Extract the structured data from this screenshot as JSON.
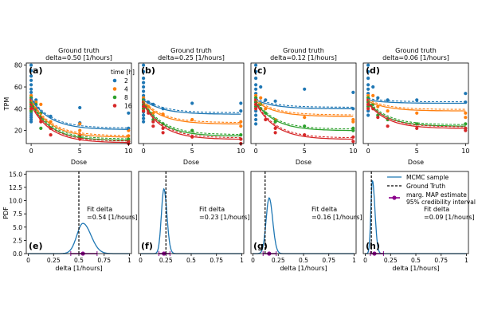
{
  "chart_data": {
    "type": "scatter",
    "colors": {
      "2": "#1f77b4",
      "4": "#ff7f0e",
      "8": "#2ca02c",
      "16": "#d62728",
      "map": "#8b008b",
      "mcmc": "#1f77b4",
      "truth": "#000000"
    },
    "legend_top": {
      "title": "time [h]",
      "entries": [
        "2",
        "4",
        "8",
        "16"
      ]
    },
    "legend_bottom": {
      "entries": [
        "MCMC sample",
        "Ground Truth",
        "marg. MAP estimate",
        "95% credibility interval"
      ]
    },
    "top_panels": [
      {
        "label": "(a)",
        "title1": "Ground truth",
        "title2": "delta=0.50 [1/hours]",
        "xlabel": "Dose",
        "ylabel": "TPM",
        "xticks": [
          "0",
          "5",
          "10"
        ],
        "yticks": [
          "20",
          "40",
          "60",
          "80"
        ],
        "xlim": [
          -0.5,
          10.3
        ],
        "ylim": [
          8,
          82
        ],
        "delta": 0.5,
        "scatter": {
          "2": [
            [
              0,
              80
            ],
            [
              0,
              75
            ],
            [
              0,
              70
            ],
            [
              0,
              66
            ],
            [
              0,
              62
            ],
            [
              0,
              58
            ],
            [
              0,
              55
            ],
            [
              0,
              52
            ],
            [
              0,
              50
            ],
            [
              0,
              48
            ],
            [
              0,
              46
            ],
            [
              0,
              44
            ],
            [
              0,
              42
            ],
            [
              0,
              40
            ],
            [
              0,
              38
            ],
            [
              0,
              36
            ],
            [
              0,
              34
            ],
            [
              0,
              32
            ],
            [
              0,
              30
            ],
            [
              0,
              28
            ],
            [
              0.5,
              48
            ],
            [
              1,
              36
            ],
            [
              2,
              33
            ],
            [
              5,
              41
            ],
            [
              5,
              27
            ],
            [
              10,
              36
            ],
            [
              10,
              22
            ]
          ],
          "4": [
            [
              0,
              52
            ],
            [
              0,
              48
            ],
            [
              0,
              45
            ],
            [
              0,
              42
            ],
            [
              0,
              40
            ],
            [
              0,
              38
            ],
            [
              0.5,
              46
            ],
            [
              1,
              44
            ],
            [
              1,
              30
            ],
            [
              2,
              28
            ],
            [
              2,
              22
            ],
            [
              5,
              26
            ],
            [
              5,
              20
            ],
            [
              10,
              20
            ],
            [
              10,
              15
            ]
          ],
          "8": [
            [
              0,
              50
            ],
            [
              0,
              46
            ],
            [
              0,
              42
            ],
            [
              0,
              38
            ],
            [
              0.5,
              44
            ],
            [
              1,
              36
            ],
            [
              1,
              22
            ],
            [
              2,
              22
            ],
            [
              5,
              14
            ],
            [
              10,
              12
            ],
            [
              10,
              10
            ]
          ],
          "16": [
            [
              0,
              48
            ],
            [
              0,
              44
            ],
            [
              0,
              40
            ],
            [
              0.5,
              40
            ],
            [
              1,
              32
            ],
            [
              1,
              28
            ],
            [
              2,
              22
            ],
            [
              2,
              16
            ],
            [
              5,
              16
            ],
            [
              5,
              12
            ],
            [
              10,
              10
            ],
            [
              10,
              8
            ]
          ]
        },
        "fits": {
          "2": [
            49,
            21
          ],
          "4": [
            47,
            14
          ],
          "8": [
            45,
            11
          ],
          "16": [
            43,
            9
          ]
        }
      },
      {
        "label": "(b)",
        "title1": "Ground truth",
        "title2": "delta=0.25 [1/hours]",
        "xlabel": "Dose",
        "ylabel": "",
        "xticks": [
          "0",
          "5",
          "10"
        ],
        "yticks": [],
        "xlim": [
          -0.5,
          10.3
        ],
        "ylim": [
          8,
          82
        ],
        "delta": 0.25,
        "scatter": {
          "2": [
            [
              0,
              80
            ],
            [
              0,
              74
            ],
            [
              0,
              68
            ],
            [
              0,
              64
            ],
            [
              0,
              60
            ],
            [
              0,
              56
            ],
            [
              0,
              52
            ],
            [
              0,
              49
            ],
            [
              0,
              46
            ],
            [
              0,
              43
            ],
            [
              0,
              40
            ],
            [
              0,
              37
            ],
            [
              0,
              34
            ],
            [
              0,
              31
            ],
            [
              0,
              28
            ],
            [
              0.5,
              46
            ],
            [
              1,
              44
            ],
            [
              2,
              40
            ],
            [
              5,
              45
            ],
            [
              10,
              45
            ],
            [
              10,
              38
            ]
          ],
          "4": [
            [
              0,
              50
            ],
            [
              0,
              46
            ],
            [
              0,
              42
            ],
            [
              0,
              38
            ],
            [
              0.5,
              42
            ],
            [
              1,
              36
            ],
            [
              2,
              35
            ],
            [
              5,
              30
            ],
            [
              10,
              28
            ],
            [
              10,
              24
            ]
          ],
          "8": [
            [
              0,
              48
            ],
            [
              0,
              44
            ],
            [
              0,
              40
            ],
            [
              0.5,
              38
            ],
            [
              1,
              30
            ],
            [
              2,
              26
            ],
            [
              5,
              20
            ],
            [
              10,
              16
            ],
            [
              10,
              12
            ]
          ],
          "16": [
            [
              0,
              46
            ],
            [
              0,
              42
            ],
            [
              0,
              38
            ],
            [
              0.5,
              36
            ],
            [
              1,
              28
            ],
            [
              1,
              24
            ],
            [
              2,
              22
            ],
            [
              2,
              18
            ],
            [
              5,
              14
            ],
            [
              10,
              12
            ],
            [
              10,
              8
            ]
          ]
        },
        "fits": {
          "2": [
            48,
            35
          ],
          "4": [
            46,
            26
          ],
          "8": [
            45,
            15
          ],
          "16": [
            44,
            12
          ]
        }
      },
      {
        "label": "(c)",
        "title1": "Ground truth",
        "title2": "delta=0.12 [1/hours]",
        "xlabel": "Dose",
        "ylabel": "",
        "xticks": [
          "0",
          "5",
          "10"
        ],
        "yticks": [],
        "xlim": [
          -0.5,
          10.3
        ],
        "ylim": [
          8,
          82
        ],
        "delta": 0.12,
        "scatter": {
          "2": [
            [
              0,
              80
            ],
            [
              0,
              74
            ],
            [
              0,
              68
            ],
            [
              0,
              62
            ],
            [
              0,
              58
            ],
            [
              0,
              54
            ],
            [
              0,
              50
            ],
            [
              0,
              46
            ],
            [
              0,
              42
            ],
            [
              0,
              38
            ],
            [
              0,
              34
            ],
            [
              0,
              30
            ],
            [
              0,
              26
            ],
            [
              0.5,
              60
            ],
            [
              1,
              48
            ],
            [
              2,
              47
            ],
            [
              5,
              58
            ],
            [
              10,
              55
            ],
            [
              10,
              40
            ]
          ],
          "4": [
            [
              0,
              52
            ],
            [
              0,
              48
            ],
            [
              0,
              44
            ],
            [
              0,
              40
            ],
            [
              0.5,
              50
            ],
            [
              1,
              40
            ],
            [
              2,
              30
            ],
            [
              5,
              32
            ],
            [
              10,
              30
            ],
            [
              10,
              28
            ]
          ],
          "8": [
            [
              0,
              50
            ],
            [
              0,
              46
            ],
            [
              0,
              42
            ],
            [
              0.5,
              44
            ],
            [
              1,
              36
            ],
            [
              2,
              28
            ],
            [
              5,
              24
            ],
            [
              10,
              22
            ],
            [
              10,
              20
            ]
          ],
          "16": [
            [
              0,
              48
            ],
            [
              0,
              44
            ],
            [
              0,
              40
            ],
            [
              0.5,
              40
            ],
            [
              1,
              30
            ],
            [
              2,
              22
            ],
            [
              2,
              18
            ],
            [
              5,
              16
            ],
            [
              10,
              14
            ],
            [
              10,
              10
            ]
          ]
        },
        "fits": {
          "2": [
            48,
            40
          ],
          "4": [
            47,
            33
          ],
          "8": [
            46,
            20
          ],
          "16": [
            45,
            12
          ]
        }
      },
      {
        "label": "(d)",
        "title1": "Ground truth",
        "title2": "delta=0.06 [1/hours]",
        "xlabel": "Dose",
        "ylabel": "",
        "xticks": [
          "0",
          "5",
          "10"
        ],
        "yticks": [],
        "xlim": [
          -0.5,
          10.3
        ],
        "ylim": [
          8,
          82
        ],
        "delta": 0.06,
        "scatter": {
          "2": [
            [
              0,
              80
            ],
            [
              0,
              74
            ],
            [
              0,
              68
            ],
            [
              0,
              62
            ],
            [
              0,
              58
            ],
            [
              0,
              54
            ],
            [
              0,
              50
            ],
            [
              0,
              46
            ],
            [
              0,
              42
            ],
            [
              0,
              38
            ],
            [
              0,
              34
            ],
            [
              0.5,
              60
            ],
            [
              1,
              50
            ],
            [
              2,
              48
            ],
            [
              5,
              48
            ],
            [
              10,
              54
            ],
            [
              10,
              46
            ]
          ],
          "4": [
            [
              0,
              52
            ],
            [
              0,
              48
            ],
            [
              0,
              44
            ],
            [
              0.5,
              52
            ],
            [
              1,
              42
            ],
            [
              2,
              38
            ],
            [
              5,
              36
            ],
            [
              10,
              36
            ],
            [
              10,
              32
            ]
          ],
          "8": [
            [
              0,
              50
            ],
            [
              0,
              46
            ],
            [
              0,
              42
            ],
            [
              0.5,
              44
            ],
            [
              1,
              34
            ],
            [
              2,
              30
            ],
            [
              5,
              26
            ],
            [
              10,
              26
            ],
            [
              10,
              22
            ]
          ],
          "16": [
            [
              0,
              48
            ],
            [
              0,
              44
            ],
            [
              0,
              40
            ],
            [
              0.5,
              40
            ],
            [
              1,
              32
            ],
            [
              2,
              24
            ],
            [
              5,
              22
            ],
            [
              10,
              22
            ],
            [
              10,
              20
            ]
          ]
        },
        "fits": {
          "2": [
            48,
            45
          ],
          "4": [
            47,
            38
          ],
          "8": [
            46,
            24
          ],
          "16": [
            45,
            22
          ]
        }
      }
    ],
    "bottom_panels": [
      {
        "label": "(e)",
        "xlabel": "delta [1/hours]",
        "ylabel": "PDF",
        "xticks": [
          "0",
          "0.25",
          "0.5",
          "0.75",
          "1"
        ],
        "xtick_vals": [
          0,
          0.25,
          0.5,
          0.75,
          1
        ],
        "yticks": [
          "0.0",
          "2.5",
          "5.0",
          "7.5",
          "10.0",
          "12.5",
          "15.0"
        ],
        "ylim": [
          0,
          15.5
        ],
        "truth": 0.5,
        "peak_x": 0.54,
        "peak_y": 5.7,
        "sigma_left": 0.06,
        "sigma_right": 0.08,
        "map": 0.54,
        "ci": [
          0.42,
          0.68
        ],
        "fit1": "Fit delta",
        "fit2": "=0.54 [1/hours]"
      },
      {
        "label": "(f)",
        "xlabel": "",
        "ylabel": "",
        "xticks": [
          "0",
          "0.25",
          "0.5",
          "0.75",
          "1"
        ],
        "xtick_vals": [
          0,
          0.25,
          0.5,
          0.75,
          1
        ],
        "yticks": [],
        "ylim": [
          0,
          15.5
        ],
        "truth": 0.25,
        "peak_x": 0.23,
        "peak_y": 12.2,
        "sigma_left": 0.025,
        "sigma_right": 0.03,
        "map": 0.23,
        "ci": [
          0.18,
          0.29
        ],
        "fit1": "Fit delta",
        "fit2": "=0.23 [1/hours]"
      },
      {
        "label": "(g)",
        "xlabel": "delta [1/hours]",
        "ylabel": "",
        "xticks": [
          "0",
          "0.25",
          "0.5",
          "0.75",
          "1"
        ],
        "xtick_vals": [
          0,
          0.25,
          0.5,
          0.75,
          1
        ],
        "yticks": [],
        "ylim": [
          0,
          15.5
        ],
        "truth": 0.12,
        "peak_x": 0.16,
        "peak_y": 10.5,
        "sigma_left": 0.03,
        "sigma_right": 0.035,
        "map": 0.16,
        "ci": [
          0.1,
          0.23
        ],
        "fit1": "Fit delta",
        "fit2": "=0.16 [1/hours]"
      },
      {
        "label": "(h)",
        "xlabel": "delta [1/hours]",
        "ylabel": "",
        "xticks": [
          "0",
          "0.25",
          "0.5",
          "0.75",
          "1"
        ],
        "xtick_vals": [
          0,
          0.25,
          0.5,
          0.75,
          1
        ],
        "yticks": [],
        "ylim": [
          0,
          15.5
        ],
        "truth": 0.06,
        "peak_x": 0.07,
        "peak_y": 13.8,
        "sigma_left": 0.015,
        "sigma_right": 0.025,
        "map": 0.09,
        "ci": [
          0.05,
          0.18
        ],
        "fit1": "Fit delta",
        "fit2": "=0.09 [1/hours]"
      }
    ]
  }
}
